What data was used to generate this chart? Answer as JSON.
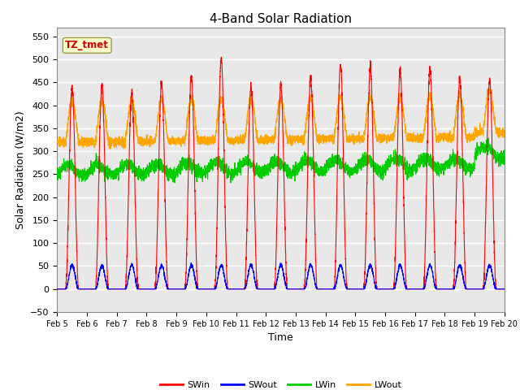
{
  "title": "4-Band Solar Radiation",
  "xlabel": "Time",
  "ylabel": "Solar Radiation (W/m2)",
  "ylim": [
    -50,
    570
  ],
  "yticks": [
    -50,
    0,
    50,
    100,
    150,
    200,
    250,
    300,
    350,
    400,
    450,
    500,
    550
  ],
  "colors": {
    "SWin": "#ff0000",
    "SWout": "#0000ff",
    "LWin": "#00cc00",
    "LWout": "#ffa500"
  },
  "fig_bg_color": "#ffffff",
  "plot_bg_color": "#e8e8e8",
  "grid_color": "#ffffff",
  "tz_label": "TZ_tmet",
  "tz_label_color": "#cc0000",
  "tz_box_facecolor": "#ffffcc",
  "tz_box_edgecolor": "#999944",
  "n_days": 15,
  "ppd": 288,
  "day_peaks_SWin": [
    440,
    445,
    425,
    450,
    465,
    500,
    440,
    445,
    460,
    490,
    485,
    475,
    480,
    460,
    455
  ],
  "tick_labels": [
    "Feb 5",
    "Feb 6",
    "Feb 7",
    "Feb 8",
    "Feb 9",
    "Feb 10",
    "Feb 11",
    "Feb 12",
    "Feb 13",
    "Feb 14",
    "Feb 15",
    "Feb 16",
    "Feb 17",
    "Feb 18",
    "Feb 19",
    "Feb 20"
  ],
  "legend_items": [
    "SWin",
    "SWout",
    "LWin",
    "LWout"
  ],
  "title_fontsize": 11,
  "axis_label_fontsize": 9,
  "tick_fontsize": 7,
  "legend_fontsize": 8
}
